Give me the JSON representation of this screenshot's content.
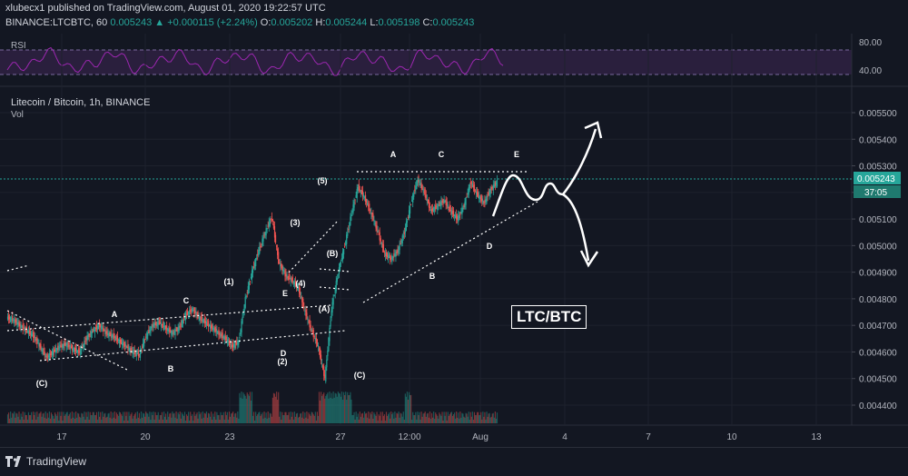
{
  "header": {
    "publish_line": "xlubecx1 published on TradingView.com, August 01, 2020 19:22:57 UTC",
    "symbol": "BINANCE:LTCBTC, 60",
    "last": "0.005243",
    "change_arrow": "▲",
    "change": "+0.000115 (+2.24%)",
    "o_label": "O:",
    "o_value": "0.005202",
    "h_label": "H:",
    "h_value": "0.005244",
    "l_label": "L:",
    "l_value": "0.005198",
    "c_label": "C:",
    "c_value": "0.005243"
  },
  "rsi": {
    "label": "RSI",
    "axis": [
      "80.00",
      "40.00"
    ],
    "color": "#9c27b0"
  },
  "main": {
    "title": "Litecoin / Bitcoin, 1h, BINANCE",
    "volume_label": "Vol",
    "price_badge": "0.005243",
    "countdown_badge": "37:05",
    "overlay_label": "LTC/BTC"
  },
  "chart_data": {
    "type": "line",
    "title": "Litecoin / Bitcoin, 1h, BINANCE",
    "xlabel": "",
    "ylabel": "",
    "y_ticks": [
      "0.005500",
      "0.005400",
      "0.005300",
      "0.005200",
      "0.005100",
      "0.005000",
      "0.004900",
      "0.004800",
      "0.004700",
      "0.004600",
      "0.004500",
      "0.004400"
    ],
    "x_ticks": [
      "17",
      "20",
      "23",
      "27",
      "12:00",
      "Aug",
      "4",
      "7",
      "10",
      "13"
    ],
    "ylim": [
      0.00435,
      0.00557
    ],
    "grid": true,
    "series": [
      {
        "values": [
          0.00473,
          0.00472,
          0.0047,
          0.00468,
          0.00466,
          0.00462,
          0.00458,
          0.0046,
          0.00462,
          0.00463,
          0.00461,
          0.0046,
          0.00465,
          0.00468,
          0.0047,
          0.00467,
          0.00466,
          0.00464,
          0.00462,
          0.0046,
          0.00459,
          0.00466,
          0.0047,
          0.00471,
          0.00469,
          0.00467,
          0.00469,
          0.00474,
          0.00476,
          0.00473,
          0.00471,
          0.00469,
          0.00467,
          0.00465,
          0.00462,
          0.00464,
          0.0048,
          0.0049,
          0.00498,
          0.00505,
          0.00511,
          0.00494,
          0.00489,
          0.00487,
          0.00484,
          0.00475,
          0.00468,
          0.00462,
          0.0045,
          0.00476,
          0.0049,
          0.005,
          0.00512,
          0.00522,
          0.00518,
          0.00512,
          0.00505,
          0.00497,
          0.00495,
          0.00498,
          0.00505,
          0.00516,
          0.00525,
          0.0052,
          0.00513,
          0.00515,
          0.00517,
          0.00513,
          0.0051,
          0.00515,
          0.00524,
          0.00519,
          0.00516,
          0.00521,
          0.00524
        ]
      }
    ],
    "annotations": [
      "(C)",
      "A",
      "B",
      "C",
      "(1)",
      "D",
      "(2)",
      "E",
      "(3)",
      "(4)",
      "(5)",
      "(A)",
      "(B)",
      "(C)",
      "A",
      "B",
      "C",
      "D",
      "E"
    ],
    "colors": {
      "up": "#26a69a",
      "down": "#ef5350",
      "projection": "#ffffff"
    }
  },
  "footer": {
    "brand": "TradingView"
  }
}
